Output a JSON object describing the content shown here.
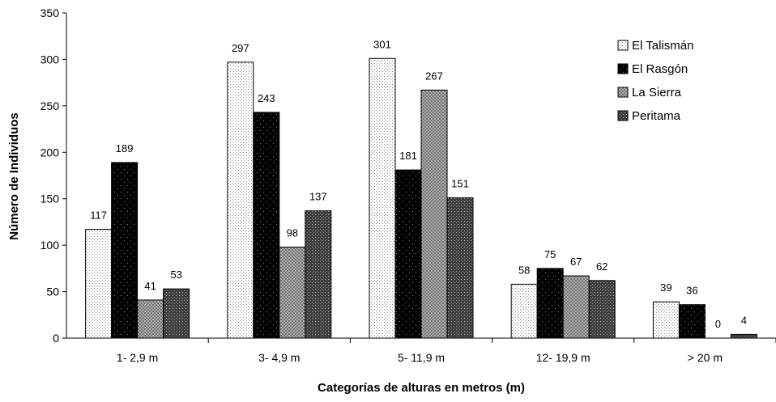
{
  "chart_data": {
    "type": "bar",
    "title": "",
    "xlabel": "Categorías de alturas en metros (m)",
    "ylabel": "Número de Individuos",
    "ylim": [
      0,
      350
    ],
    "yticks": [
      0,
      50,
      100,
      150,
      200,
      250,
      300,
      350
    ],
    "categories": [
      "1- 2,9 m",
      "3- 4,9 m",
      "5- 11,9 m",
      "12- 19,9 m",
      "> 20 m"
    ],
    "series": [
      {
        "name": "El Talismán",
        "values": [
          117,
          297,
          301,
          58,
          39
        ],
        "pattern": "fine-dots",
        "color": "#ffffff"
      },
      {
        "name": "El Rasgón",
        "values": [
          189,
          243,
          181,
          75,
          36
        ],
        "pattern": "black-dots",
        "color": "#000000"
      },
      {
        "name": "La Sierra",
        "values": [
          41,
          98,
          267,
          67,
          0
        ],
        "pattern": "checker-gray",
        "color": "#9a9a9a"
      },
      {
        "name": "Peritama",
        "values": [
          53,
          137,
          151,
          62,
          4
        ],
        "pattern": "cross-dark",
        "color": "#5a5a5a"
      }
    ],
    "grid": false,
    "legend": "right"
  }
}
